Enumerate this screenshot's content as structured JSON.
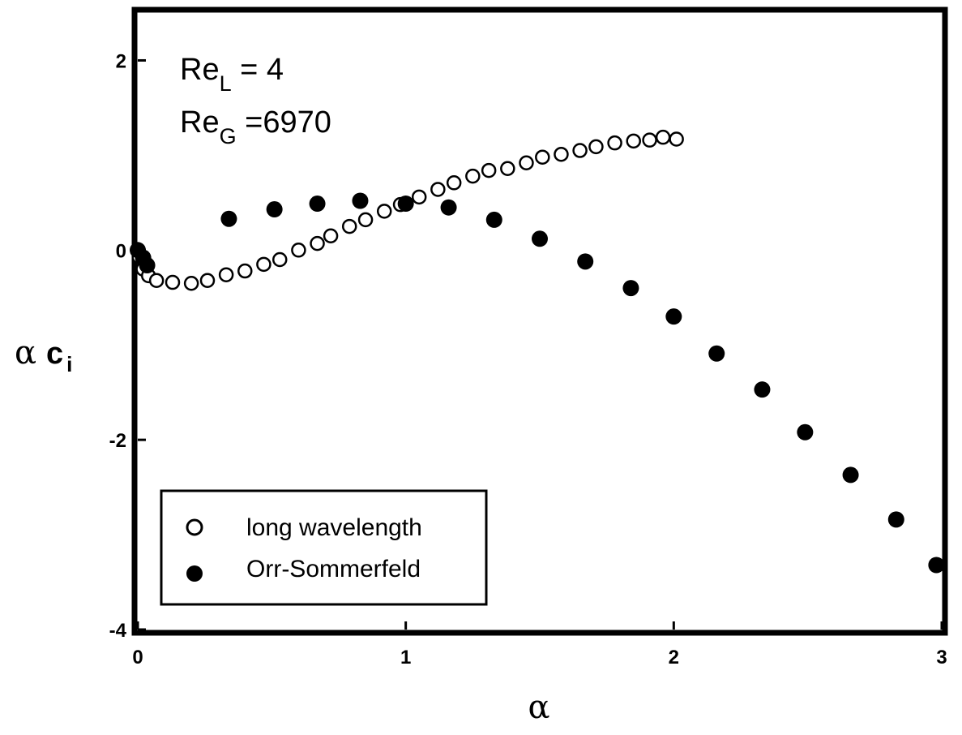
{
  "chart_data": {
    "type": "scatter",
    "xlabel": "α",
    "ylabel": {
      "greek": "α",
      "main": "c",
      "sub": "i"
    },
    "xlim": [
      0,
      3
    ],
    "ylim": [
      -4,
      2.5
    ],
    "x_ticks": [
      "0",
      "1",
      "2",
      "3"
    ],
    "y_ticks": [
      "2",
      "0",
      "-2",
      "-4"
    ],
    "x_tick_values": [
      0,
      1,
      2,
      3
    ],
    "y_tick_values": [
      2,
      0,
      -2,
      -4
    ],
    "annotations": [
      {
        "main": "Re",
        "sub": "L",
        "rest": " = 4"
      },
      {
        "main": "Re",
        "sub": "G",
        "rest": " =6970"
      }
    ],
    "legend_position": "bottom-left",
    "series": [
      {
        "name": "long wavelength",
        "marker": "open-circle",
        "points": [
          [
            0.005,
            -0.07
          ],
          [
            0.02,
            -0.2
          ],
          [
            0.04,
            -0.27
          ],
          [
            0.07,
            -0.32
          ],
          [
            0.13,
            -0.34
          ],
          [
            0.2,
            -0.35
          ],
          [
            0.26,
            -0.32
          ],
          [
            0.33,
            -0.26
          ],
          [
            0.4,
            -0.22
          ],
          [
            0.47,
            -0.15
          ],
          [
            0.53,
            -0.1
          ],
          [
            0.6,
            0.0
          ],
          [
            0.67,
            0.07
          ],
          [
            0.72,
            0.15
          ],
          [
            0.79,
            0.25
          ],
          [
            0.85,
            0.32
          ],
          [
            0.92,
            0.41
          ],
          [
            0.98,
            0.48
          ],
          [
            1.05,
            0.56
          ],
          [
            1.12,
            0.64
          ],
          [
            1.18,
            0.71
          ],
          [
            1.25,
            0.78
          ],
          [
            1.31,
            0.84
          ],
          [
            1.38,
            0.86
          ],
          [
            1.45,
            0.92
          ],
          [
            1.51,
            0.98
          ],
          [
            1.58,
            1.01
          ],
          [
            1.65,
            1.05
          ],
          [
            1.71,
            1.09
          ],
          [
            1.78,
            1.13
          ],
          [
            1.85,
            1.15
          ],
          [
            1.91,
            1.16
          ],
          [
            1.96,
            1.19
          ],
          [
            2.01,
            1.17
          ]
        ]
      },
      {
        "name": "Orr-Sommerfeld",
        "marker": "filled-circle",
        "points": [
          [
            0.0,
            0.0
          ],
          [
            0.02,
            -0.08
          ],
          [
            0.035,
            -0.16
          ],
          [
            0.34,
            0.33
          ],
          [
            0.51,
            0.43
          ],
          [
            0.67,
            0.49
          ],
          [
            0.83,
            0.52
          ],
          [
            1.0,
            0.49
          ],
          [
            1.16,
            0.45
          ],
          [
            1.33,
            0.32
          ],
          [
            1.5,
            0.12
          ],
          [
            1.67,
            -0.12
          ],
          [
            1.84,
            -0.4
          ],
          [
            2.0,
            -0.7
          ],
          [
            2.16,
            -1.09
          ],
          [
            2.33,
            -1.47
          ],
          [
            2.49,
            -1.92
          ],
          [
            2.66,
            -2.37
          ],
          [
            2.83,
            -2.84
          ],
          [
            2.98,
            -3.32
          ]
        ]
      }
    ]
  }
}
